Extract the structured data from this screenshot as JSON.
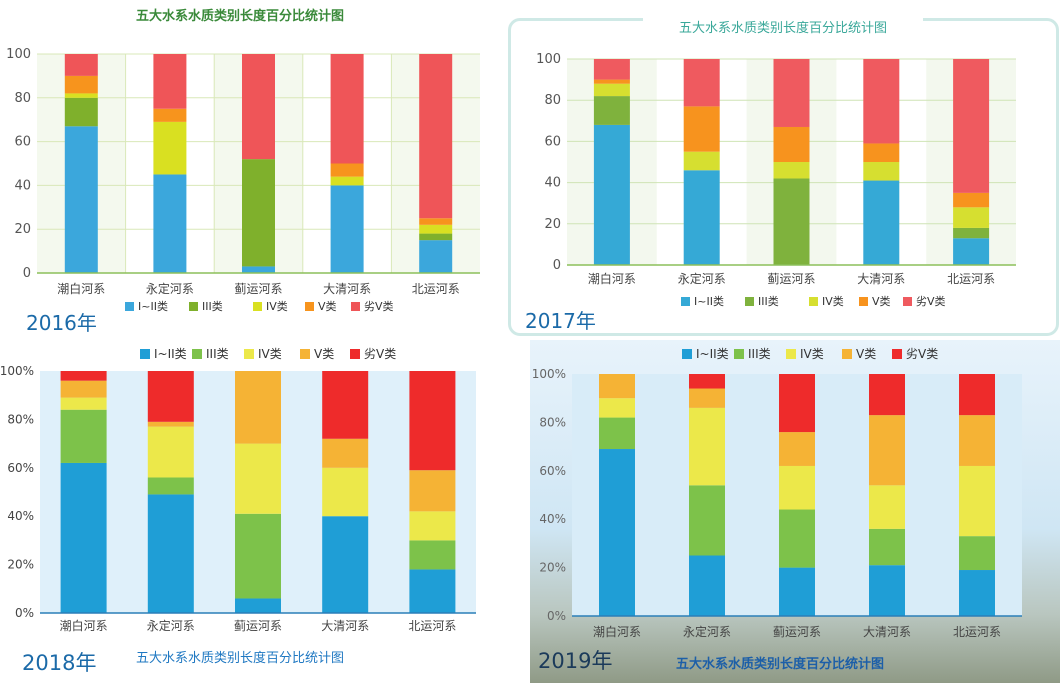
{
  "categories": [
    "潮白河系",
    "永定河系",
    "蓟运河系",
    "大清河系",
    "北运河系"
  ],
  "chart_title": "五大水系水质类别长度百分比统计图",
  "class_names": [
    "I~II类",
    "III类",
    "IV类",
    "V类",
    "劣V类"
  ],
  "charts": [
    {
      "year_label": "2016年",
      "title": "五大水系水质类别长度百分比统计图",
      "palette": [
        "#3ba7dc",
        "#7fb02c",
        "#d9e021",
        "#f7941d",
        "#ef5558"
      ],
      "y_ticks": [
        "0",
        "20",
        "40",
        "60",
        "80",
        "100"
      ]
    },
    {
      "year_label": "2017年",
      "title": "五大水系水质类别长度百分比统计图",
      "palette": [
        "#35a9d6",
        "#7fb23d",
        "#d6df30",
        "#f7931e",
        "#ef5a5f"
      ],
      "y_ticks": [
        "0",
        "20",
        "40",
        "60",
        "80",
        "100"
      ]
    },
    {
      "year_label": "2018年",
      "title": "五大水系水质类别长度百分比统计图",
      "palette": [
        "#1f9ed6",
        "#7dc24a",
        "#ece84a",
        "#f5b335",
        "#ee2b2b"
      ],
      "y_ticks": [
        "0%",
        "20%",
        "40%",
        "60%",
        "80%",
        "100%"
      ]
    },
    {
      "year_label": "2019年",
      "title": "五大水系水质类别长度百分比统计图",
      "palette": [
        "#1f9ed6",
        "#7dc24a",
        "#ece84a",
        "#f5b335",
        "#ee2b2b"
      ],
      "y_ticks": [
        "0%",
        "20%",
        "40%",
        "60%",
        "80%",
        "100%"
      ]
    }
  ],
  "chart_data": [
    {
      "type": "bar",
      "stacked": true,
      "title": "五大水系水质类别长度百分比统计图",
      "year": "2016年",
      "categories": [
        "潮白河系",
        "永定河系",
        "蓟运河系",
        "大清河系",
        "北运河系"
      ],
      "ylim": [
        0,
        100
      ],
      "legend": "bottom",
      "series": [
        {
          "name": "I~II类",
          "values": [
            67,
            45,
            3,
            40,
            15
          ]
        },
        {
          "name": "III类",
          "values": [
            13,
            0,
            49,
            0,
            3
          ]
        },
        {
          "name": "IV类",
          "values": [
            2,
            24,
            0,
            4,
            4
          ]
        },
        {
          "name": "V类",
          "values": [
            8,
            6,
            0,
            6,
            3
          ]
        },
        {
          "name": "劣V类",
          "values": [
            10,
            25,
            48,
            50,
            75
          ]
        }
      ]
    },
    {
      "type": "bar",
      "stacked": true,
      "title": "五大水系水质类别长度百分比统计图",
      "year": "2017年",
      "categories": [
        "潮白河系",
        "永定河系",
        "蓟运河系",
        "大清河系",
        "北运河系"
      ],
      "ylim": [
        0,
        100
      ],
      "legend": "bottom",
      "series": [
        {
          "name": "I~II类",
          "values": [
            68,
            46,
            0,
            41,
            13
          ]
        },
        {
          "name": "III类",
          "values": [
            14,
            0,
            42,
            0,
            5
          ]
        },
        {
          "name": "IV类",
          "values": [
            6,
            9,
            8,
            9,
            10
          ]
        },
        {
          "name": "V类",
          "values": [
            2,
            22,
            17,
            9,
            7
          ]
        },
        {
          "name": "劣V类",
          "values": [
            10,
            23,
            33,
            41,
            65
          ]
        }
      ]
    },
    {
      "type": "bar",
      "stacked": true,
      "year": "2018年",
      "title": "五大水系水质类别长度百分比统计图",
      "categories": [
        "潮白河系",
        "永定河系",
        "蓟运河系",
        "大清河系",
        "北运河系"
      ],
      "ylim": [
        0,
        100
      ],
      "legend": "top",
      "series": [
        {
          "name": "I~II类",
          "values": [
            62,
            49,
            6,
            40,
            18
          ]
        },
        {
          "name": "III类",
          "values": [
            22,
            7,
            35,
            0,
            12
          ]
        },
        {
          "name": "IV类",
          "values": [
            5,
            21,
            29,
            20,
            12
          ]
        },
        {
          "name": "V类",
          "values": [
            7,
            2,
            30,
            12,
            17
          ]
        },
        {
          "name": "劣V类",
          "values": [
            4,
            21,
            0,
            28,
            41
          ]
        }
      ]
    },
    {
      "type": "bar",
      "stacked": true,
      "year": "2019年",
      "title": "五大水系水质类别长度百分比统计图",
      "categories": [
        "潮白河系",
        "永定河系",
        "蓟运河系",
        "大清河系",
        "北运河系"
      ],
      "ylim": [
        0,
        100
      ],
      "legend": "top",
      "series": [
        {
          "name": "I~II类",
          "values": [
            69,
            25,
            20,
            21,
            19
          ]
        },
        {
          "name": "III类",
          "values": [
            13,
            29,
            24,
            15,
            14
          ]
        },
        {
          "name": "IV类",
          "values": [
            8,
            32,
            18,
            18,
            29
          ]
        },
        {
          "name": "V类",
          "values": [
            10,
            8,
            14,
            29,
            21
          ]
        },
        {
          "name": "劣V类",
          "values": [
            0,
            6,
            24,
            17,
            17
          ]
        }
      ]
    }
  ]
}
